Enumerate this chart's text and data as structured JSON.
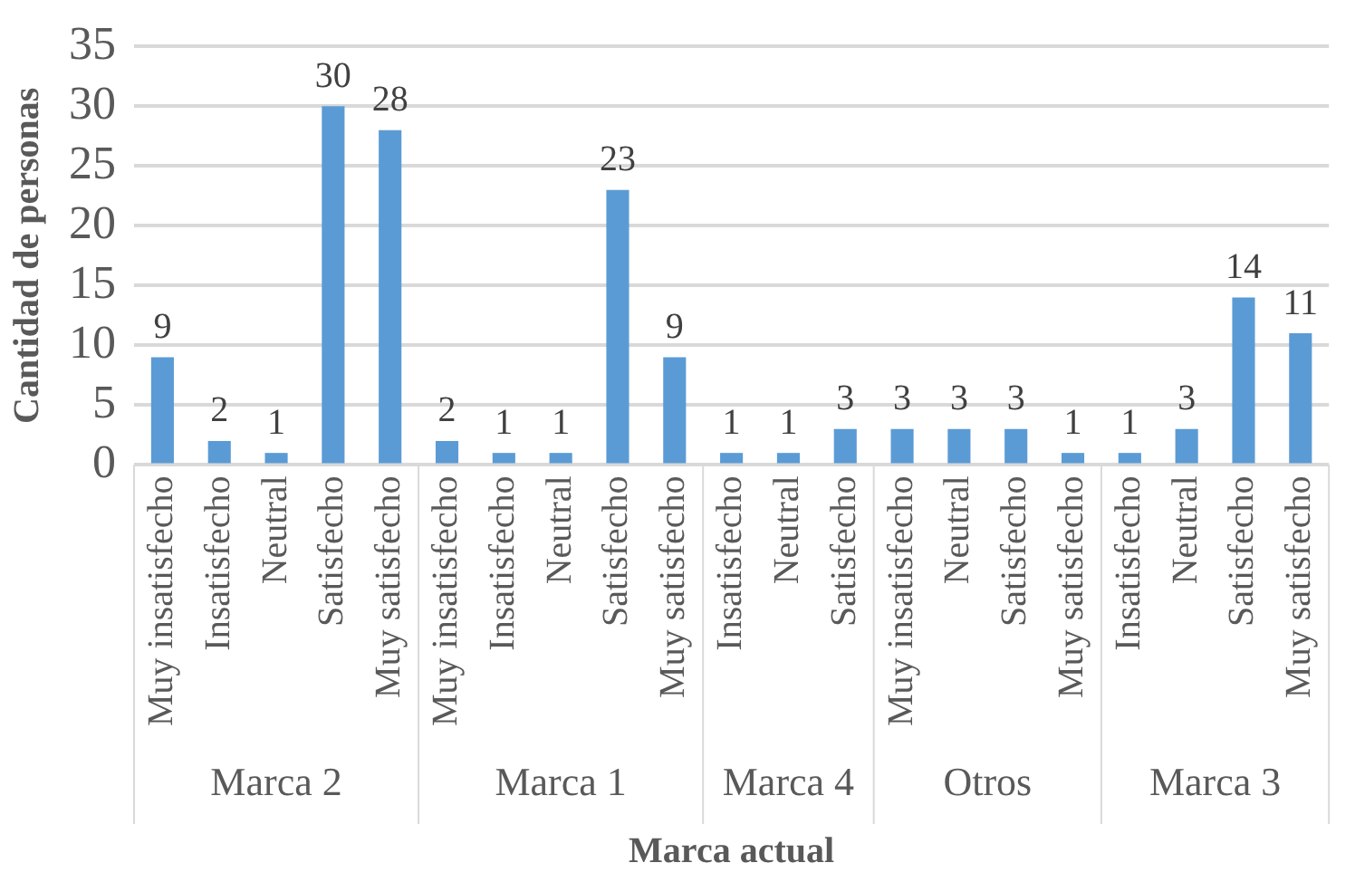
{
  "chart_data": {
    "type": "bar",
    "xlabel": "Marca actual",
    "ylabel": "Cantidad de personas",
    "categories": [
      "Muy insatisfecho",
      "Insatisfecho",
      "Neutral",
      "Satisfecho",
      "Muy satisfecho",
      "Muy insatisfecho",
      "Insatisfecho",
      "Neutral",
      "Satisfecho",
      "Muy satisfecho",
      "Insatisfecho",
      "Neutral",
      "Satisfecho",
      "Muy insatisfecho",
      "Neutral",
      "Satisfecho",
      "Muy satisfecho",
      "Insatisfecho",
      "Neutral",
      "Satisfecho",
      "Muy satisfecho"
    ],
    "values": [
      9,
      2,
      1,
      30,
      28,
      2,
      1,
      1,
      23,
      9,
      1,
      1,
      3,
      3,
      3,
      3,
      1,
      1,
      3,
      14,
      11
    ],
    "color": "#5b9bd5",
    "annotations": [
      "Marca 2",
      "Marca 1",
      "Marca 4",
      "Otros",
      "Marca 3"
    ],
    "ylim": [
      0,
      35
    ],
    "yticks": [
      0,
      5,
      10,
      15,
      20,
      25,
      30,
      35
    ],
    "grid": "y",
    "data_labels": true,
    "legend": false
  }
}
